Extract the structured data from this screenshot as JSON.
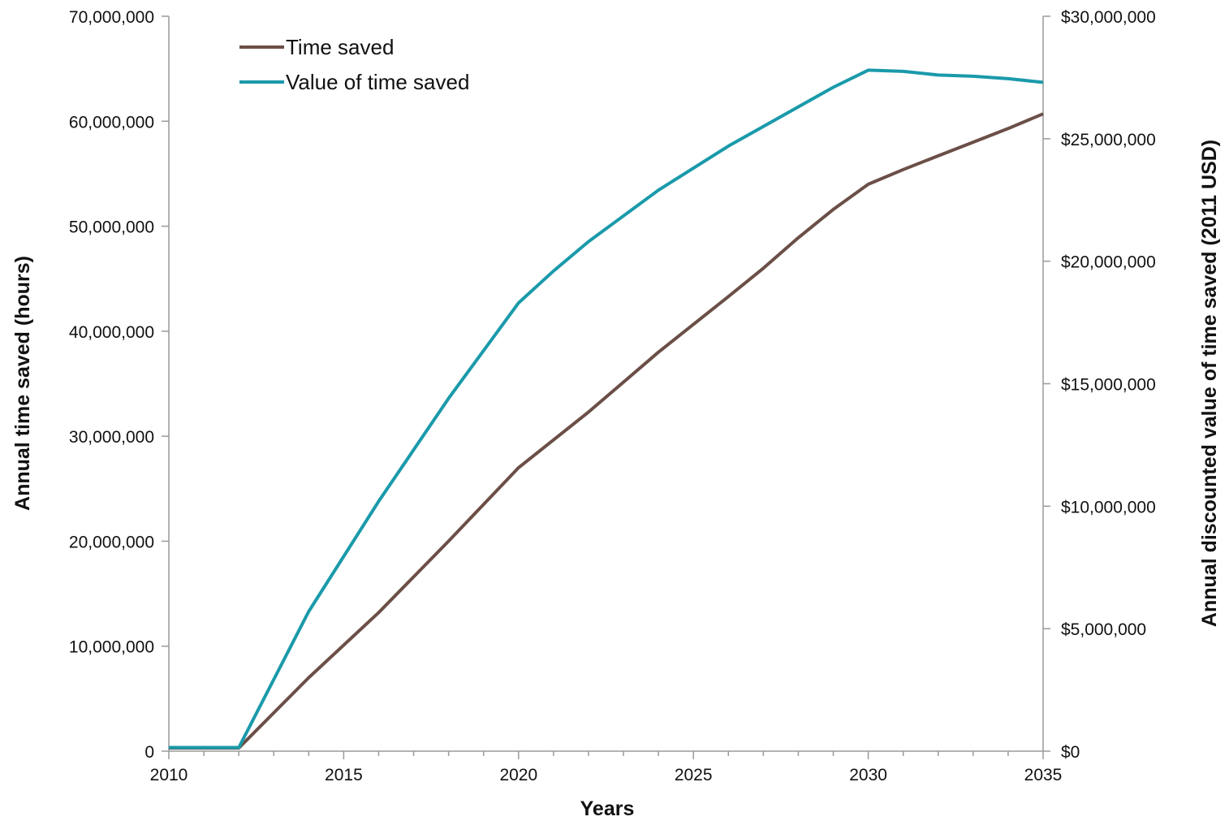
{
  "chart_data": {
    "type": "line",
    "xlabel": "Years",
    "ylabel_left": "Annual time saved (hours)",
    "ylabel_right": "Annual discounted value of time saved (2011 USD)",
    "xlim": [
      2010,
      2035
    ],
    "ylim_left": [
      0,
      70000000
    ],
    "ylim_right": [
      0,
      30000000
    ],
    "x_ticks": [
      "2010",
      "2015",
      "2020",
      "2025",
      "2030",
      "2035"
    ],
    "y_left_ticks": [
      "0",
      "10,000,000",
      "20,000,000",
      "30,000,000",
      "40,000,000",
      "50,000,000",
      "60,000,000",
      "70,000,000"
    ],
    "y_right_ticks": [
      "$0",
      "$5,000,000",
      "$10,000,000",
      "$15,000,000",
      "$20,000,000",
      "$25,000,000",
      "$30,000,000"
    ],
    "legend_position": "top-left",
    "grid": false,
    "series": [
      {
        "name": "Time saved",
        "axis": "left",
        "color": "#6b4f47",
        "x": [
          2010,
          2011,
          2012,
          2014,
          2016,
          2018,
          2020,
          2022,
          2024,
          2026,
          2027,
          2028,
          2029,
          2030,
          2031,
          2032,
          2033,
          2034,
          2035
        ],
        "values": [
          300000,
          300000,
          300000,
          7000000,
          13200000,
          20000000,
          27000000,
          32300000,
          38000000,
          43300000,
          46000000,
          48900000,
          51600000,
          54000000,
          55400000,
          56700000,
          58000000,
          59300000,
          60700000
        ]
      },
      {
        "name": "Value of time saved",
        "axis": "right",
        "color": "#1a9aaa",
        "x": [
          2010,
          2011,
          2012,
          2014,
          2016,
          2018,
          2020,
          2021,
          2022,
          2024,
          2026,
          2028,
          2029,
          2030,
          2031,
          2032,
          2033,
          2034,
          2035
        ],
        "values": [
          150000,
          150000,
          150000,
          5700000,
          10200000,
          14400000,
          18300000,
          19600000,
          20800000,
          22900000,
          24700000,
          26300000,
          27100000,
          27800000,
          27750000,
          27600000,
          27550000,
          27450000,
          27300000
        ]
      }
    ]
  }
}
